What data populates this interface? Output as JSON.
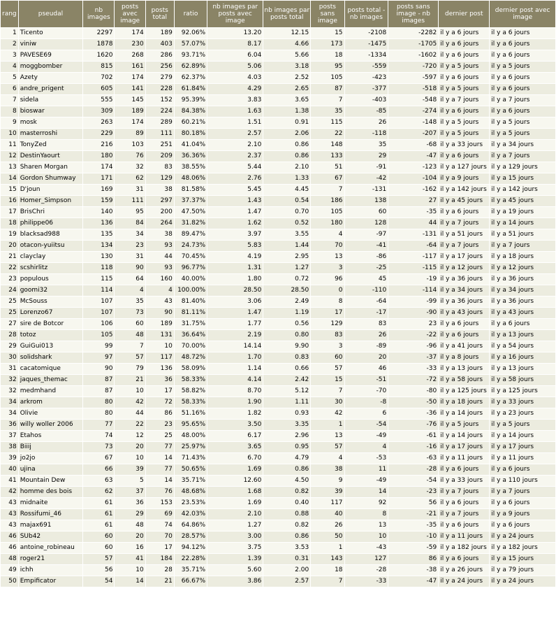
{
  "headers": [
    "rang",
    "pseudal",
    "nb images",
    "posts avec image",
    "posts total",
    "ratio",
    "nb images par posts avec image",
    "nb images par posts total",
    "posts sans image",
    "posts total - nb images",
    "posts sans image - nb images",
    "dernier post",
    "dernier post avec image"
  ],
  "rows": [
    [
      "1",
      "Ticento",
      "2297",
      "174",
      "189",
      "92.06%",
      "13.20",
      "12.15",
      "15",
      "-2108",
      "-2282",
      "il y a 6 jours",
      "il y a 6 jours"
    ],
    [
      "2",
      "viniw",
      "1878",
      "230",
      "403",
      "57.07%",
      "8.17",
      "4.66",
      "173",
      "-1475",
      "-1705",
      "il y a 6 jours",
      "il y a 6 jours"
    ],
    [
      "3",
      "PAVESE69",
      "1620",
      "268",
      "286",
      "93.71%",
      "6.04",
      "5.66",
      "18",
      "-1334",
      "-1602",
      "il y a 6 jours",
      "il y a 6 jours"
    ],
    [
      "4",
      "moggbomber",
      "815",
      "161",
      "256",
      "62.89%",
      "5.06",
      "3.18",
      "95",
      "-559",
      "-720",
      "il y a 5 jours",
      "il y a 5 jours"
    ],
    [
      "5",
      "Azety",
      "702",
      "174",
      "279",
      "62.37%",
      "4.03",
      "2.52",
      "105",
      "-423",
      "-597",
      "il y a 6 jours",
      "il y a 6 jours"
    ],
    [
      "6",
      "andre_prigent",
      "605",
      "141",
      "228",
      "61.84%",
      "4.29",
      "2.65",
      "87",
      "-377",
      "-518",
      "il y a 5 jours",
      "il y a 6 jours"
    ],
    [
      "7",
      "sidela",
      "555",
      "145",
      "152",
      "95.39%",
      "3.83",
      "3.65",
      "7",
      "-403",
      "-548",
      "il y a 7 jours",
      "il y a 7 jours"
    ],
    [
      "8",
      "bioswar",
      "309",
      "189",
      "224",
      "84.38%",
      "1.63",
      "1.38",
      "35",
      "-85",
      "-274",
      "il y a 6 jours",
      "il y a 6 jours"
    ],
    [
      "9",
      "mosk",
      "263",
      "174",
      "289",
      "60.21%",
      "1.51",
      "0.91",
      "115",
      "26",
      "-148",
      "il y a 5 jours",
      "il y a 5 jours"
    ],
    [
      "10",
      "masterroshi",
      "229",
      "89",
      "111",
      "80.18%",
      "2.57",
      "2.06",
      "22",
      "-118",
      "-207",
      "il y a 5 jours",
      "il y a 5 jours"
    ],
    [
      "11",
      "TonyZed",
      "216",
      "103",
      "251",
      "41.04%",
      "2.10",
      "0.86",
      "148",
      "35",
      "-68",
      "il y a 33 jours",
      "il y a 34 jours"
    ],
    [
      "12",
      "DestinYaourt",
      "180",
      "76",
      "209",
      "36.36%",
      "2.37",
      "0.86",
      "133",
      "29",
      "-47",
      "il y a 6 jours",
      "il y a 7 jours"
    ],
    [
      "13",
      "Sharen Morgan",
      "174",
      "32",
      "83",
      "38.55%",
      "5.44",
      "2.10",
      "51",
      "-91",
      "-123",
      "il y a 127 jours",
      "il y a 129 jours"
    ],
    [
      "14",
      "Gordon Shumway",
      "171",
      "62",
      "129",
      "48.06%",
      "2.76",
      "1.33",
      "67",
      "-42",
      "-104",
      "il y a 9 jours",
      "il y a 15 jours"
    ],
    [
      "15",
      "D'joun",
      "169",
      "31",
      "38",
      "81.58%",
      "5.45",
      "4.45",
      "7",
      "-131",
      "-162",
      "il y a 142 jours",
      "il y a 142 jours"
    ],
    [
      "16",
      "Homer_Simpson",
      "159",
      "111",
      "297",
      "37.37%",
      "1.43",
      "0.54",
      "186",
      "138",
      "27",
      "il y a 45 jours",
      "il y a 45 jours"
    ],
    [
      "17",
      "BrisChri",
      "140",
      "95",
      "200",
      "47.50%",
      "1.47",
      "0.70",
      "105",
      "60",
      "-35",
      "il y a 6 jours",
      "il y a 19 jours"
    ],
    [
      "18",
      "philippe06",
      "136",
      "84",
      "264",
      "31.82%",
      "1.62",
      "0.52",
      "180",
      "128",
      "44",
      "il y a 7 jours",
      "il y a 14 jours"
    ],
    [
      "19",
      "blacksad988",
      "135",
      "34",
      "38",
      "89.47%",
      "3.97",
      "3.55",
      "4",
      "-97",
      "-131",
      "il y a 51 jours",
      "il y a 51 jours"
    ],
    [
      "20",
      "otacon-yuiitsu",
      "134",
      "23",
      "93",
      "24.73%",
      "5.83",
      "1.44",
      "70",
      "-41",
      "-64",
      "il y a 7 jours",
      "il y a 7 jours"
    ],
    [
      "21",
      "clayclay",
      "130",
      "31",
      "44",
      "70.45%",
      "4.19",
      "2.95",
      "13",
      "-86",
      "-117",
      "il y a 17 jours",
      "il y a 18 jours"
    ],
    [
      "22",
      "scshirlitz",
      "118",
      "90",
      "93",
      "96.77%",
      "1.31",
      "1.27",
      "3",
      "-25",
      "-115",
      "il y a 12 jours",
      "il y a 12 jours"
    ],
    [
      "23",
      "populous",
      "115",
      "64",
      "160",
      "40.00%",
      "1.80",
      "0.72",
      "96",
      "45",
      "-19",
      "il y a 36 jours",
      "il y a 36 jours"
    ],
    [
      "24",
      "goomi32",
      "114",
      "4",
      "4",
      "100.00%",
      "28.50",
      "28.50",
      "0",
      "-110",
      "-114",
      "il y a 34 jours",
      "il y a 34 jours"
    ],
    [
      "25",
      "McSouss",
      "107",
      "35",
      "43",
      "81.40%",
      "3.06",
      "2.49",
      "8",
      "-64",
      "-99",
      "il y a 36 jours",
      "il y a 36 jours"
    ],
    [
      "25",
      "Lorenzo67",
      "107",
      "73",
      "90",
      "81.11%",
      "1.47",
      "1.19",
      "17",
      "-17",
      "-90",
      "il y a 43 jours",
      "il y a 43 jours"
    ],
    [
      "27",
      "sire de Botcor",
      "106",
      "60",
      "189",
      "31.75%",
      "1.77",
      "0.56",
      "129",
      "83",
      "23",
      "il y a 6 jours",
      "il y a 6 jours"
    ],
    [
      "28",
      "totoz",
      "105",
      "48",
      "131",
      "36.64%",
      "2.19",
      "0.80",
      "83",
      "26",
      "-22",
      "il y a 6 jours",
      "il y a 13 jours"
    ],
    [
      "29",
      "GuiGui013",
      "99",
      "7",
      "10",
      "70.00%",
      "14.14",
      "9.90",
      "3",
      "-89",
      "-96",
      "il y a 41 jours",
      "il y a 54 jours"
    ],
    [
      "30",
      "solidshark",
      "97",
      "57",
      "117",
      "48.72%",
      "1.70",
      "0.83",
      "60",
      "20",
      "-37",
      "il y a 8 jours",
      "il y a 16 jours"
    ],
    [
      "31",
      "cacatomique",
      "90",
      "79",
      "136",
      "58.09%",
      "1.14",
      "0.66",
      "57",
      "46",
      "-33",
      "il y a 13 jours",
      "il y a 13 jours"
    ],
    [
      "32",
      "jaques_themac",
      "87",
      "21",
      "36",
      "58.33%",
      "4.14",
      "2.42",
      "15",
      "-51",
      "-72",
      "il y a 58 jours",
      "il y a 58 jours"
    ],
    [
      "32",
      "medmhand",
      "87",
      "10",
      "17",
      "58.82%",
      "8.70",
      "5.12",
      "7",
      "-70",
      "-80",
      "il y a 125 jours",
      "il y a 125 jours"
    ],
    [
      "34",
      "arkrom",
      "80",
      "42",
      "72",
      "58.33%",
      "1.90",
      "1.11",
      "30",
      "-8",
      "-50",
      "il y a 18 jours",
      "il y a 33 jours"
    ],
    [
      "34",
      "Olivie",
      "80",
      "44",
      "86",
      "51.16%",
      "1.82",
      "0.93",
      "42",
      "6",
      "-36",
      "il y a 14 jours",
      "il y a 23 jours"
    ],
    [
      "36",
      "willy woller 2006",
      "77",
      "22",
      "23",
      "95.65%",
      "3.50",
      "3.35",
      "1",
      "-54",
      "-76",
      "il y a 5 jours",
      "il y a 5 jours"
    ],
    [
      "37",
      "Etahos",
      "74",
      "12",
      "25",
      "48.00%",
      "6.17",
      "2.96",
      "13",
      "-49",
      "-61",
      "il y a 14 jours",
      "il y a 14 jours"
    ],
    [
      "38",
      "Biiij",
      "73",
      "20",
      "77",
      "25.97%",
      "3.65",
      "0.95",
      "57",
      "4",
      "-16",
      "il y a 17 jours",
      "il y a 17 jours"
    ],
    [
      "39",
      "jo2jo",
      "67",
      "10",
      "14",
      "71.43%",
      "6.70",
      "4.79",
      "4",
      "-53",
      "-63",
      "il y a 11 jours",
      "il y a 11 jours"
    ],
    [
      "40",
      "ujina",
      "66",
      "39",
      "77",
      "50.65%",
      "1.69",
      "0.86",
      "38",
      "11",
      "-28",
      "il y a 6 jours",
      "il y a 6 jours"
    ],
    [
      "41",
      "Mountain Dew",
      "63",
      "5",
      "14",
      "35.71%",
      "12.60",
      "4.50",
      "9",
      "-49",
      "-54",
      "il y a 33 jours",
      "il y a 110 jours"
    ],
    [
      "42",
      "homme des bois",
      "62",
      "37",
      "76",
      "48.68%",
      "1.68",
      "0.82",
      "39",
      "14",
      "-23",
      "il y a 7 jours",
      "il y a 7 jours"
    ],
    [
      "43",
      "midnaite",
      "61",
      "36",
      "153",
      "23.53%",
      "1.69",
      "0.40",
      "117",
      "92",
      "56",
      "il y a 6 jours",
      "il y a 6 jours"
    ],
    [
      "43",
      "Rossifumi_46",
      "61",
      "29",
      "69",
      "42.03%",
      "2.10",
      "0.88",
      "40",
      "8",
      "-21",
      "il y a 7 jours",
      "il y a 9 jours"
    ],
    [
      "43",
      "majax691",
      "61",
      "48",
      "74",
      "64.86%",
      "1.27",
      "0.82",
      "26",
      "13",
      "-35",
      "il y a 6 jours",
      "il y a 6 jours"
    ],
    [
      "46",
      "SUb42",
      "60",
      "20",
      "70",
      "28.57%",
      "3.00",
      "0.86",
      "50",
      "10",
      "-10",
      "il y a 11 jours",
      "il y a 24 jours"
    ],
    [
      "46",
      "antoine_robineau",
      "60",
      "16",
      "17",
      "94.12%",
      "3.75",
      "3.53",
      "1",
      "-43",
      "-59",
      "il y a 182 jours",
      "il y a 182 jours"
    ],
    [
      "48",
      "roger21",
      "57",
      "41",
      "184",
      "22.28%",
      "1.39",
      "0.31",
      "143",
      "127",
      "86",
      "il y a 6 jours",
      "il y a 15 jours"
    ],
    [
      "49",
      "ichh",
      "56",
      "10",
      "28",
      "35.71%",
      "5.60",
      "2.00",
      "18",
      "-28",
      "-38",
      "il y a 26 jours",
      "il y a 79 jours"
    ],
    [
      "50",
      "Empificator",
      "54",
      "14",
      "21",
      "66.67%",
      "3.86",
      "2.57",
      "7",
      "-33",
      "-47",
      "il y a 24 jours",
      "il y a 24 jours"
    ]
  ]
}
